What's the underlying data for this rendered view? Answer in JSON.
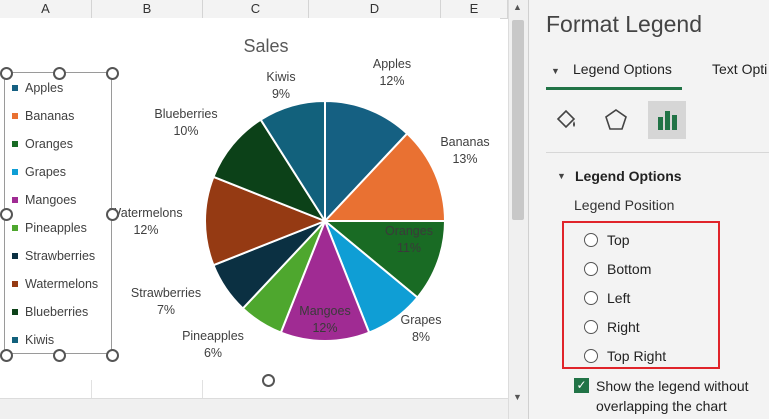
{
  "columns": [
    "A",
    "B",
    "C",
    "D",
    "E"
  ],
  "chart": {
    "title": "Sales",
    "chart_data": {
      "type": "pie",
      "title": "Sales",
      "categories": [
        "Apples",
        "Bananas",
        "Oranges",
        "Grapes",
        "Mangoes",
        "Pineapples",
        "Strawberries",
        "Watermelons",
        "Blueberries",
        "Kiwis"
      ],
      "values": [
        12,
        13,
        11,
        8,
        12,
        6,
        7,
        12,
        10,
        9
      ],
      "colors": [
        "#156082",
        "#e97132",
        "#196b24",
        "#0f9ed5",
        "#a02b93",
        "#4ea72e",
        "#0b3042",
        "#953a13",
        "#0c4118",
        "#12617c"
      ],
      "value_labels": [
        "12%",
        "13%",
        "11%",
        "8%",
        "12%",
        "6%",
        "7%",
        "12%",
        "10%",
        "9%"
      ],
      "legend_position": "left"
    }
  },
  "pane": {
    "title": "Format Legend",
    "tabs": [
      "Legend Options",
      "Text Opti"
    ],
    "section": "Legend Options",
    "position_label": "Legend Position",
    "radios": [
      "Top",
      "Bottom",
      "Left",
      "Right",
      "Top Right"
    ],
    "checkbox_label": "Show the legend without overlapping the chart",
    "icons": [
      "fill-bucket-icon",
      "pentagon-effects-icon",
      "bar-chart-options-icon"
    ],
    "accent": "#217346"
  }
}
